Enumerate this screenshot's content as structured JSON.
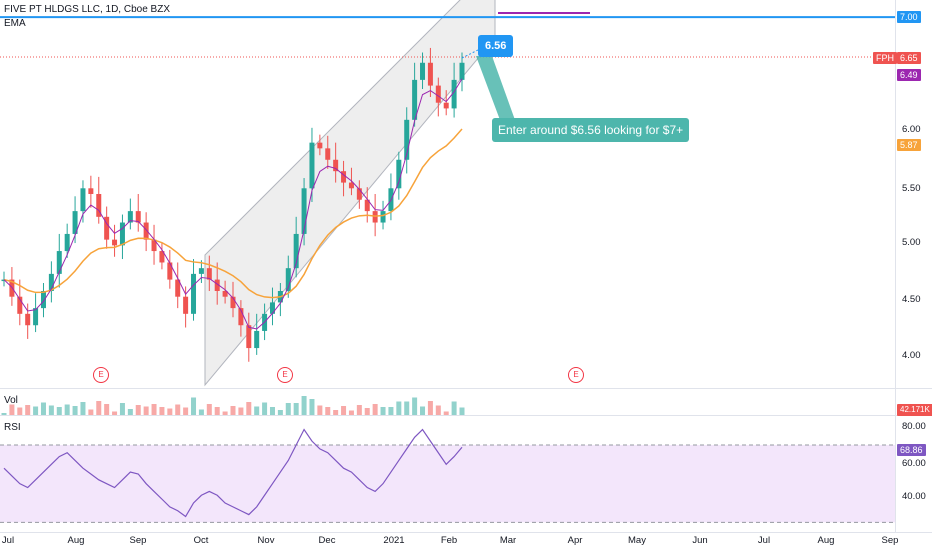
{
  "symbol": {
    "title": "FIVE PT HLDGS LLC, 1D, Cboe BZX",
    "indicator": "EMA",
    "ticker_tag": "FPH"
  },
  "price_axis": {
    "ticks": [
      "6.00",
      "5.50",
      "5.00",
      "4.50",
      "4.00"
    ],
    "badges": {
      "resistance": "7.00",
      "last": "6.65",
      "ema_fast": "6.49",
      "ema_slow": "5.87"
    },
    "min": 3.75,
    "max": 7.15
  },
  "volume": {
    "label": "Vol",
    "badge": "42.171K"
  },
  "rsi": {
    "label": "RSI",
    "ticks": [
      "80.00",
      "60.00",
      "40.00"
    ],
    "badge": "68.86",
    "upper": 70,
    "lower": 30
  },
  "x_axis": [
    "Jul",
    "Aug",
    "Sep",
    "Oct",
    "Nov",
    "Dec",
    "2021",
    "Feb",
    "Mar",
    "Apr",
    "May",
    "Jun",
    "Jul",
    "Aug",
    "Sep"
  ],
  "annotations": {
    "price_box": "6.56",
    "callout": "Enter around $6.56 looking for $7+",
    "earnings_marker": "E"
  },
  "colors": {
    "up": "#26a69a",
    "down": "#ef5350",
    "ema_fast": "#9c27b0",
    "ema_slow": "#f7a33a",
    "resistance": "#2196f3",
    "rsi_line": "#7e57c2",
    "rsi_band": "#f3e6fb",
    "channel_fill": "#eeeeee",
    "callout": "#4db6ac"
  },
  "chart_data": {
    "type": "candlestick",
    "title": "FIVE PT HLDGS LLC, 1D, Cboe BZX",
    "price_path": [
      4.7,
      4.55,
      4.4,
      4.3,
      4.45,
      4.6,
      4.75,
      4.95,
      5.1,
      5.3,
      5.5,
      5.45,
      5.25,
      5.05,
      5.0,
      5.2,
      5.3,
      5.2,
      5.05,
      4.95,
      4.85,
      4.7,
      4.55,
      4.4,
      4.75,
      4.8,
      4.7,
      4.6,
      4.55,
      4.45,
      4.3,
      4.1,
      4.25,
      4.4,
      4.5,
      4.6,
      4.8,
      5.1,
      5.5,
      5.9,
      5.85,
      5.75,
      5.65,
      5.55,
      5.5,
      5.4,
      5.3,
      5.2,
      5.3,
      5.5,
      5.75,
      6.1,
      6.45,
      6.6,
      6.4,
      6.25,
      6.2,
      6.45,
      6.6
    ],
    "resistance_level": 7.0,
    "last_price": 6.65,
    "ema_fast_last": 6.49,
    "ema_slow_last": 5.87,
    "rsi_path": [
      58,
      54,
      50,
      48,
      52,
      56,
      60,
      64,
      66,
      62,
      58,
      55,
      52,
      50,
      48,
      52,
      56,
      55,
      50,
      46,
      42,
      38,
      36,
      33,
      40,
      44,
      46,
      44,
      40,
      38,
      36,
      34,
      38,
      44,
      50,
      56,
      62,
      70,
      78,
      72,
      68,
      66,
      62,
      58,
      56,
      52,
      48,
      46,
      50,
      56,
      62,
      68,
      74,
      78,
      72,
      66,
      60,
      64,
      68.86
    ]
  }
}
